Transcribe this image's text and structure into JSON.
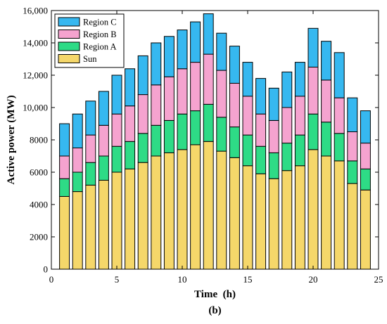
{
  "chart_data": {
    "type": "bar",
    "stacked": true,
    "xlabel": "Time  (h)",
    "ylabel": "Active power (MW)",
    "caption": "(b)",
    "xlim": [
      0,
      25
    ],
    "ylim": [
      0,
      16000
    ],
    "xticks": [
      0,
      5,
      10,
      15,
      20,
      25
    ],
    "yticks": [
      0,
      2000,
      4000,
      6000,
      8000,
      10000,
      12000,
      14000,
      16000
    ],
    "xtick_labels": [
      "0",
      "5",
      "10",
      "15",
      "20",
      "25"
    ],
    "ytick_labels": [
      "0",
      "2000",
      "4000",
      "6000",
      "8000",
      "10,000",
      "12,000",
      "14,000",
      "16,000"
    ],
    "bar_width": 0.75,
    "legend_position": "top-left",
    "legend_order": [
      "Region C",
      "Region B",
      "Region A",
      "Sun"
    ],
    "x": [
      1,
      2,
      3,
      4,
      5,
      6,
      7,
      8,
      9,
      10,
      11,
      12,
      13,
      14,
      15,
      16,
      17,
      18,
      19,
      20,
      21,
      22,
      23,
      24
    ],
    "series": [
      {
        "name": "Sun",
        "color": "#F5D76A",
        "values": [
          4500,
          4800,
          5200,
          5500,
          6000,
          6200,
          6600,
          7000,
          7200,
          7400,
          7700,
          7900,
          7300,
          6900,
          6400,
          5900,
          5600,
          6100,
          6400,
          7400,
          7000,
          6700,
          5300,
          4900
        ]
      },
      {
        "name": "Region A",
        "color": "#2EDB86",
        "values": [
          1100,
          1200,
          1400,
          1500,
          1600,
          1700,
          1800,
          1900,
          2000,
          2200,
          2100,
          2300,
          2100,
          1900,
          1900,
          1700,
          1600,
          1700,
          1900,
          2200,
          2100,
          1700,
          1400,
          1300
        ]
      },
      {
        "name": "Region B",
        "color": "#F5A3CF",
        "values": [
          1400,
          1500,
          1700,
          1900,
          2000,
          2200,
          2400,
          2500,
          2700,
          2800,
          3000,
          3100,
          2900,
          2700,
          2400,
          2000,
          2000,
          2200,
          2400,
          2900,
          2600,
          2200,
          1800,
          1600
        ]
      },
      {
        "name": "Region C",
        "color": "#36B8F0",
        "values": [
          2000,
          2100,
          2100,
          2100,
          2400,
          2300,
          2400,
          2600,
          2500,
          2400,
          2500,
          2500,
          2300,
          2300,
          2100,
          2200,
          2000,
          2200,
          2100,
          2400,
          2400,
          2800,
          2100,
          2000
        ]
      }
    ]
  }
}
